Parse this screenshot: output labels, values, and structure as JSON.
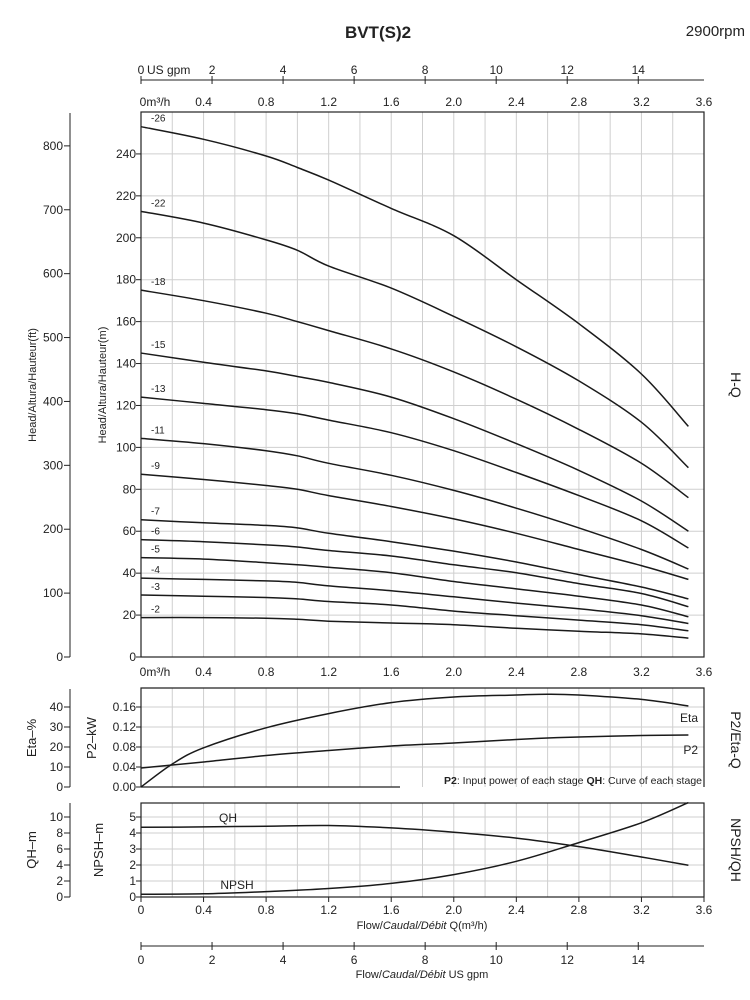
{
  "chart_data": [
    {
      "type": "line",
      "title": "BVT(S)2",
      "speed": "2900rpm",
      "panel_label": "H-Q",
      "xlim": [
        0,
        3.6
      ],
      "x_ticks": [
        "0m³/h",
        "0.4",
        "0.8",
        "1.2",
        "1.6",
        "2.0",
        "2.4",
        "2.8",
        "3.2",
        "3.6"
      ],
      "x_ticks_bottom": [
        "0m³/h",
        "0.4",
        "0.8",
        "1.2",
        "1.6",
        "2.0",
        "2.4",
        "2.8",
        "3.2",
        "3.6"
      ],
      "x2_label": "US gpm",
      "x2_ticks": [
        "0",
        "2",
        "4",
        "6",
        "8",
        "10",
        "12",
        "14"
      ],
      "ylabel": "Head/Altura/Hauteur(m)",
      "ylim": [
        0,
        260
      ],
      "y_ticks": [
        "0",
        "20",
        "40",
        "60",
        "80",
        "100",
        "120",
        "140",
        "160",
        "180",
        "200",
        "220",
        "240"
      ],
      "y2label": "Head/Altura/Hauteur(ft)",
      "y2_ticks": [
        "0",
        "100",
        "200",
        "300",
        "400",
        "500",
        "600",
        "700",
        "800"
      ],
      "grid": true,
      "x": [
        0,
        0.4,
        0.8,
        1.0,
        1.2,
        1.6,
        2.0,
        2.4,
        2.8,
        3.2,
        3.5
      ],
      "series": [
        {
          "name": "-26",
          "values": [
            253,
            247,
            239,
            233.5,
            227.5,
            214,
            201,
            180,
            159,
            135,
            110
          ]
        },
        {
          "name": "-22",
          "values": [
            212.6,
            207,
            199,
            194,
            186.5,
            176,
            162.5,
            148,
            131.7,
            112,
            90.3
          ]
        },
        {
          "name": "-18",
          "values": [
            175,
            170,
            164,
            160,
            155.7,
            147,
            136,
            123,
            108.6,
            92.4,
            76
          ]
        },
        {
          "name": "-15",
          "values": [
            145,
            140.6,
            136.5,
            133.8,
            131,
            124,
            113.7,
            101.8,
            89,
            74.4,
            60
          ]
        },
        {
          "name": "-13",
          "values": [
            124,
            121,
            118,
            116,
            113,
            107,
            98.4,
            88,
            77,
            65,
            52
          ]
        },
        {
          "name": "-11",
          "values": [
            104.3,
            101.8,
            98.4,
            96,
            92.4,
            86.7,
            79.5,
            71,
            61.6,
            51.3,
            42
          ]
        },
        {
          "name": "-9",
          "values": [
            87.2,
            84.7,
            81.8,
            80,
            77,
            71.8,
            65.9,
            59,
            51.3,
            43.6,
            37
          ]
        },
        {
          "name": "-7",
          "values": [
            65.5,
            64,
            62.8,
            61.6,
            59,
            55,
            50.5,
            45.3,
            39.3,
            33.4,
            27.7
          ]
        },
        {
          "name": "-6",
          "values": [
            56,
            55,
            53.5,
            52.5,
            50.8,
            48.2,
            44,
            40.2,
            35,
            30.3,
            24
          ]
        },
        {
          "name": "-5",
          "values": [
            47.4,
            46.7,
            45,
            44,
            42.8,
            40.2,
            36,
            32.5,
            29,
            24.8,
            19.2
          ]
        },
        {
          "name": "-4",
          "values": [
            37.6,
            37,
            36.3,
            35.6,
            33.9,
            31.6,
            28.7,
            25.7,
            23,
            19.7,
            16
          ]
        },
        {
          "name": "-3",
          "values": [
            29.6,
            29,
            28.4,
            27.7,
            26.5,
            24.8,
            21.9,
            19.7,
            17.6,
            15.4,
            12.5
          ]
        },
        {
          "name": "-2",
          "values": [
            18.8,
            18.8,
            18.5,
            18,
            17.1,
            16.2,
            15.4,
            13.7,
            12.3,
            11,
            9
          ]
        }
      ]
    },
    {
      "type": "line",
      "panel_label": "P2/Eta-Q",
      "xlim": [
        0,
        3.6
      ],
      "ylabel": "P2–kW",
      "ylim": [
        0,
        0.18
      ],
      "y_ticks": [
        "0.00",
        "0.04",
        "0.08",
        "0.12",
        "0.16"
      ],
      "y2label": "Eta–%",
      "y2lim": [
        0,
        45
      ],
      "y2_ticks": [
        "0",
        "10",
        "20",
        "30",
        "40"
      ],
      "grid": true,
      "x": [
        0,
        0.2,
        0.4,
        0.8,
        1.2,
        1.6,
        2.0,
        2.4,
        2.6,
        2.8,
        3.2,
        3.5
      ],
      "series": [
        {
          "name": "Eta",
          "axis": "Eta–%",
          "values": [
            0,
            11.5,
            19.6,
            29.6,
            36.7,
            42.2,
            45,
            46,
            46.4,
            46,
            43.8,
            40.5
          ]
        },
        {
          "name": "P2",
          "axis": "P2–kW",
          "values": [
            0.038,
            0.044,
            0.05,
            0.063,
            0.073,
            0.082,
            0.088,
            0.095,
            0.098,
            0.1,
            0.103,
            0.104
          ]
        }
      ],
      "note": {
        "p2_key": "P2",
        "p2_text": ": Input power of each stage ",
        "qh_key": "QH",
        "qh_text": ": Curve of each stage"
      }
    },
    {
      "type": "line",
      "panel_label": "NPSH/QH",
      "xlim": [
        0,
        3.6
      ],
      "x_ticks": [
        "0",
        "0.4",
        "0.8",
        "1.2",
        "1.6",
        "2.0",
        "2.4",
        "2.8",
        "3.2",
        "3.6"
      ],
      "xlabel": {
        "a": "Flow/",
        "b": "Caudal/Débit",
        "c": " Q(m³/h)"
      },
      "x2_ticks": [
        "0",
        "2",
        "4",
        "6",
        "8",
        "10",
        "12",
        "14"
      ],
      "x2label": {
        "a": "Flow/",
        "b": "Caudal/Débit",
        "c": "  US gpm"
      },
      "ylabel": "NPSH–m",
      "ylim": [
        0,
        6
      ],
      "y_ticks": [
        "0",
        "1",
        "2",
        "3",
        "4",
        "5"
      ],
      "y2label": "QH–m",
      "y2lim": [
        0,
        12
      ],
      "y2_ticks": [
        "0",
        "2",
        "4",
        "6",
        "8",
        "10"
      ],
      "grid": true,
      "x": [
        0,
        0.4,
        0.8,
        1.2,
        1.6,
        2.0,
        2.4,
        2.8,
        3.2,
        3.5
      ],
      "series": [
        {
          "name": "QH",
          "axis": "QH–m",
          "values": [
            8.72,
            8.76,
            8.85,
            8.94,
            8.64,
            8.1,
            7.36,
            6.3,
            5.0,
            3.96
          ]
        },
        {
          "name": "NPSH",
          "axis": "NPSH–m",
          "values": [
            0.17,
            0.2,
            0.34,
            0.53,
            0.85,
            1.4,
            2.23,
            3.4,
            4.64,
            5.9
          ]
        }
      ]
    }
  ]
}
